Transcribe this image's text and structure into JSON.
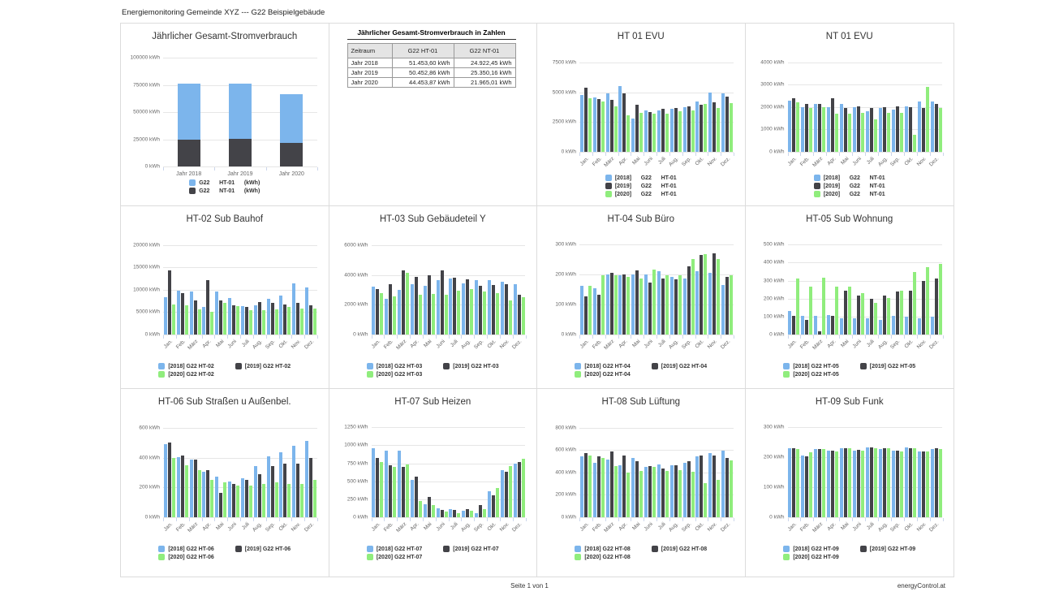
{
  "header": {
    "title": "Energiemonitoring Gemeinde XYZ --- G22 Beispielgebäude"
  },
  "footer": {
    "page_label": "Seite 1 von 1",
    "brand": "energyControl.at"
  },
  "colors": {
    "y2018": "#7cb5ec",
    "y2019": "#434348",
    "y2020": "#90ed7d",
    "grid_line": "#e6e6e6",
    "axis_line": "#ccd6eb",
    "axis_text": "#666666",
    "title_text": "#333333"
  },
  "months": [
    "Jan.",
    "Feb.",
    "März",
    "Apr.",
    "Mai",
    "Juni",
    "Juli",
    "Aug.",
    "Sep.",
    "Okt.",
    "Nov.",
    "Dez."
  ],
  "table": {
    "title": "Jährlicher Gesamt-Stromverbrauch in Zahlen",
    "columns": [
      "Zeitraum",
      "G22 HT-01",
      "G22 NT-01"
    ],
    "rows": [
      [
        "Jahr 2018",
        "51.453,60 kWh",
        "24.922,45 kWh"
      ],
      [
        "Jahr 2019",
        "50.452,86 kWh",
        "25.350,16 kWh"
      ],
      [
        "Jahr 2020",
        "44.453,87 kWh",
        "21.965,01 kWh"
      ]
    ]
  },
  "chart_data": [
    {
      "id": "overview",
      "type": "bar",
      "stacked": true,
      "title": "Jährlicher Gesamt-Stromverbrauch",
      "categories": [
        "Jahr 2018",
        "Jahr 2019",
        "Jahr 2020"
      ],
      "ylabel_unit": "kWh",
      "yticks": [
        0,
        25000,
        50000,
        75000,
        100000
      ],
      "ymax": 106000,
      "series": [
        {
          "name": "G22 NT-01 (kWh)",
          "color": "#434348",
          "values": [
            24922.45,
            25350.16,
            21965.01
          ]
        },
        {
          "name": "G22 HT-01 (kWh)",
          "color": "#7cb5ec",
          "values": [
            51453.6,
            50452.86,
            44453.87
          ]
        }
      ],
      "legend_layout": "column",
      "legend": [
        {
          "color": "#7cb5ec",
          "label": "G22      HT-01      (kWh)"
        },
        {
          "color": "#434348",
          "label": "G22      NT-01      (kWh)"
        }
      ]
    },
    {
      "id": "ht01",
      "type": "bar",
      "stacked": false,
      "title": "HT 01 EVU",
      "ylabel_unit": "kWh",
      "yticks": [
        0,
        2500,
        5000,
        7500
      ],
      "ymax": 8450,
      "series": [
        {
          "name": "[2018] G22 HT-01",
          "color": "#7cb5ec",
          "values": [
            4750,
            4550,
            4900,
            5500,
            2800,
            3500,
            3500,
            3600,
            3750,
            4250,
            4950,
            4900
          ]
        },
        {
          "name": "[2019] G22 HT-01",
          "color": "#434348",
          "values": [
            5400,
            4450,
            4350,
            4900,
            3950,
            3350,
            3600,
            3650,
            3800,
            3950,
            4150,
            4650
          ]
        },
        {
          "name": "[2020] G22 HT-01",
          "color": "#90ed7d",
          "values": [
            4500,
            4200,
            3800,
            3050,
            3250,
            3200,
            3200,
            3400,
            3500,
            4000,
            3650,
            4100
          ]
        }
      ],
      "legend_layout": "column",
      "legend": [
        {
          "color": "#7cb5ec",
          "label": "[2018]      G22      HT-01"
        },
        {
          "color": "#434348",
          "label": "[2019]      G22      HT-01"
        },
        {
          "color": "#90ed7d",
          "label": "[2020]      G22      HT-01"
        }
      ]
    },
    {
      "id": "nt01",
      "type": "bar",
      "stacked": false,
      "title": "NT 01 EVU",
      "ylabel_unit": "kWh",
      "yticks": [
        0,
        1000,
        2000,
        3000,
        4000
      ],
      "ymax": 4500,
      "series": [
        {
          "name": "[2018] G22 NT-01",
          "color": "#7cb5ec",
          "values": [
            2300,
            2000,
            2150,
            2000,
            2150,
            2000,
            1800,
            1950,
            1900,
            2050,
            2250,
            2250
          ]
        },
        {
          "name": "[2019] G22 NT-01",
          "color": "#434348",
          "values": [
            2400,
            2150,
            2150,
            2400,
            1950,
            2050,
            1950,
            2000,
            2050,
            2000,
            1950,
            2150
          ]
        },
        {
          "name": "[2020] G22 NT-01",
          "color": "#90ed7d",
          "values": [
            2200,
            1950,
            2000,
            1700,
            1700,
            1750,
            1450,
            1750,
            1750,
            750,
            2900,
            1950
          ]
        }
      ],
      "legend_layout": "column",
      "legend": [
        {
          "color": "#7cb5ec",
          "label": "[2018]      G22      NT-01"
        },
        {
          "color": "#434348",
          "label": "[2019]      G22      NT-01"
        },
        {
          "color": "#90ed7d",
          "label": "[2020]      G22      NT-01"
        }
      ]
    },
    {
      "id": "ht02",
      "type": "bar",
      "stacked": false,
      "title": "HT-02 Sub Bauhof",
      "ylabel_unit": "kWh",
      "yticks": [
        0,
        5000,
        10000,
        15000,
        20000
      ],
      "ymax": 22500,
      "series": [
        {
          "name": "[2018] G22 HT-02",
          "color": "#7cb5ec",
          "values": [
            8300,
            9800,
            9600,
            6100,
            9600,
            8100,
            6400,
            6600,
            8000,
            8800,
            11500,
            10500
          ]
        },
        {
          "name": "[2019] G22 HT-02",
          "color": "#434348",
          "values": [
            14300,
            9300,
            7600,
            12100,
            7600,
            6500,
            6200,
            7200,
            7000,
            6800,
            7100,
            6600
          ]
        },
        {
          "name": "[2020] G22 HT-02",
          "color": "#90ed7d",
          "values": [
            6700,
            6600,
            5700,
            5000,
            7100,
            6400,
            5400,
            5400,
            5600,
            6200,
            5900,
            5900
          ]
        }
      ],
      "legend_layout": "two-col",
      "legend": [
        {
          "color": "#7cb5ec",
          "label": "[2018] G22 HT-02"
        },
        {
          "color": "#434348",
          "label": "[2019] G22 HT-02"
        },
        {
          "color": "#90ed7d",
          "label": "[2020] G22 HT-02"
        }
      ]
    },
    {
      "id": "ht03",
      "type": "bar",
      "stacked": false,
      "title": "HT-03 Sub Gebäudeteil Y",
      "ylabel_unit": "kWh",
      "yticks": [
        0,
        2000,
        4000,
        6000
      ],
      "ymax": 6750,
      "series": [
        {
          "name": "[2018] G22 HT-03",
          "color": "#7cb5ec",
          "values": [
            3200,
            2400,
            3000,
            3350,
            3250,
            3650,
            3750,
            3450,
            3650,
            3650,
            3550,
            3350
          ]
        },
        {
          "name": "[2019] G22 HT-03",
          "color": "#434348",
          "values": [
            3050,
            3350,
            4300,
            3880,
            3950,
            4300,
            3820,
            3720,
            3280,
            3300,
            3380,
            2650
          ]
        },
        {
          "name": "[2020] G22 HT-03",
          "color": "#90ed7d",
          "values": [
            2750,
            2550,
            4150,
            2680,
            2700,
            2650,
            2950,
            3050,
            2880,
            2780,
            2280,
            2500
          ]
        }
      ],
      "legend_layout": "two-col",
      "legend": [
        {
          "color": "#7cb5ec",
          "label": "[2018] G22 HT-03"
        },
        {
          "color": "#434348",
          "label": "[2019] G22 HT-03"
        },
        {
          "color": "#90ed7d",
          "label": "[2020] G22 HT-03"
        }
      ]
    },
    {
      "id": "ht04",
      "type": "bar",
      "stacked": false,
      "title": "HT-04 Sub Büro",
      "ylabel_unit": "kWh",
      "yticks": [
        0,
        100,
        200,
        300
      ],
      "ymax": 335,
      "series": [
        {
          "name": "[2018] G22 HT-04",
          "color": "#7cb5ec",
          "values": [
            163,
            153,
            199,
            196,
            200,
            200,
            211,
            193,
            187,
            212,
            206,
            166
          ]
        },
        {
          "name": "[2019] G22 HT-04",
          "color": "#434348",
          "values": [
            127,
            133,
            205,
            200,
            213,
            172,
            187,
            185,
            228,
            265,
            269,
            192
          ]
        },
        {
          "name": "[2020] G22 HT-04",
          "color": "#90ed7d",
          "values": [
            161,
            196,
            196,
            191,
            186,
            215,
            197,
            197,
            252,
            267,
            250,
            196
          ]
        }
      ],
      "legend_layout": "two-col",
      "legend": [
        {
          "color": "#7cb5ec",
          "label": "[2018] G22 HT-04"
        },
        {
          "color": "#434348",
          "label": "[2019] G22 HT-04"
        },
        {
          "color": "#90ed7d",
          "label": "[2020] G22 HT-04"
        }
      ]
    },
    {
      "id": "ht05",
      "type": "bar",
      "stacked": false,
      "title": "HT-05 Sub Wohnung",
      "ylabel_unit": "kWh",
      "yticks": [
        0,
        100,
        200,
        300,
        400,
        500
      ],
      "ymax": 560,
      "series": [
        {
          "name": "[2018] G22 HT-05",
          "color": "#7cb5ec",
          "values": [
            132,
            106,
            104,
            108,
            92,
            91,
            91,
            83,
            102,
            100,
            90,
            98
          ]
        },
        {
          "name": "[2019] G22 HT-05",
          "color": "#434348",
          "values": [
            104,
            80,
            18,
            102,
            245,
            218,
            199,
            217,
            241,
            246,
            297,
            312
          ]
        },
        {
          "name": "[2020] G22 HT-05",
          "color": "#90ed7d",
          "values": [
            312,
            268,
            318,
            268,
            266,
            231,
            178,
            202,
            243,
            350,
            375,
            391
          ]
        }
      ],
      "legend_layout": "two-col",
      "legend": [
        {
          "color": "#7cb5ec",
          "label": "[2018] G22 HT-05"
        },
        {
          "color": "#434348",
          "label": "[2019] G22 HT-05"
        },
        {
          "color": "#90ed7d",
          "label": "[2020] G22 HT-05"
        }
      ]
    },
    {
      "id": "ht06",
      "type": "bar",
      "stacked": false,
      "title": "HT-06 Sub Straßen u Außenbel.",
      "ylabel_unit": "kWh",
      "yticks": [
        0,
        200,
        400,
        600
      ],
      "ymax": 675,
      "series": [
        {
          "name": "[2018] G22 HT-06",
          "color": "#7cb5ec",
          "values": [
            490,
            405,
            388,
            306,
            270,
            240,
            260,
            345,
            410,
            433,
            477,
            512
          ]
        },
        {
          "name": "[2019] G22 HT-06",
          "color": "#434348",
          "values": [
            500,
            413,
            389,
            316,
            166,
            222,
            248,
            291,
            341,
            362,
            358,
            400
          ]
        },
        {
          "name": "[2020] G22 HT-06",
          "color": "#90ed7d",
          "values": [
            397,
            350,
            316,
            248,
            232,
            210,
            212,
            224,
            233,
            222,
            223,
            250
          ]
        }
      ],
      "legend_layout": "two-col",
      "legend": [
        {
          "color": "#7cb5ec",
          "label": "[2018] G22 HT-06"
        },
        {
          "color": "#434348",
          "label": "[2019] G22 HT-06"
        },
        {
          "color": "#90ed7d",
          "label": "[2020] G22 HT-06"
        }
      ]
    },
    {
      "id": "ht07",
      "type": "bar",
      "stacked": false,
      "title": "HT-07 Sub Heizen",
      "ylabel_unit": "kWh",
      "yticks": [
        0,
        250,
        500,
        750,
        1000,
        1250
      ],
      "ymax": 1400,
      "series": [
        {
          "name": "[2018] G22 HT-07",
          "color": "#7cb5ec",
          "values": [
            960,
            930,
            930,
            515,
            180,
            120,
            115,
            85,
            55,
            365,
            650,
            750
          ]
        },
        {
          "name": "[2019] G22 HT-07",
          "color": "#434348",
          "values": [
            820,
            720,
            700,
            565,
            280,
            105,
            105,
            115,
            165,
            305,
            630,
            765
          ]
        },
        {
          "name": "[2020] G22 HT-07",
          "color": "#90ed7d",
          "values": [
            770,
            705,
            735,
            230,
            165,
            75,
            55,
            90,
            110,
            410,
            710,
            810
          ]
        }
      ],
      "legend_layout": "two-col",
      "legend": [
        {
          "color": "#7cb5ec",
          "label": "[2018] G22 HT-07"
        },
        {
          "color": "#434348",
          "label": "[2019] G22 HT-07"
        },
        {
          "color": "#90ed7d",
          "label": "[2020] G22 HT-07"
        }
      ]
    },
    {
      "id": "ht08",
      "type": "bar",
      "stacked": false,
      "title": "HT-08 Sub Lüftung",
      "ylabel_unit": "kWh",
      "yticks": [
        0,
        200,
        400,
        600,
        800
      ],
      "ymax": 900,
      "series": [
        {
          "name": "[2018] G22 HT-08",
          "color": "#7cb5ec",
          "values": [
            548,
            483,
            515,
            467,
            527,
            448,
            472,
            465,
            485,
            545,
            572,
            598
          ]
        },
        {
          "name": "[2019] G22 HT-08",
          "color": "#434348",
          "values": [
            572,
            543,
            590,
            555,
            500,
            455,
            435,
            462,
            500,
            553,
            552,
            533
          ]
        },
        {
          "name": "[2020] G22 HT-08",
          "color": "#90ed7d",
          "values": [
            552,
            530,
            455,
            398,
            415,
            450,
            415,
            420,
            407,
            302,
            333,
            505
          ]
        }
      ],
      "legend_layout": "two-col",
      "legend": [
        {
          "color": "#7cb5ec",
          "label": "[2018] G22 HT-08"
        },
        {
          "color": "#434348",
          "label": "[2019] G22 HT-08"
        },
        {
          "color": "#90ed7d",
          "label": "[2020] G22 HT-08"
        }
      ]
    },
    {
      "id": "ht09",
      "type": "bar",
      "stacked": false,
      "title": "HT-09 Sub Funk",
      "ylabel_unit": "kWh",
      "yticks": [
        0,
        100,
        200,
        300
      ],
      "ymax": 335,
      "series": [
        {
          "name": "[2018] G22 HT-09",
          "color": "#7cb5ec",
          "values": [
            230,
            205,
            226,
            222,
            229,
            222,
            232,
            228,
            221,
            232,
            220,
            228
          ]
        },
        {
          "name": "[2019] G22 HT-09",
          "color": "#434348",
          "values": [
            230,
            204,
            228,
            221,
            230,
            223,
            232,
            230,
            221,
            230,
            220,
            229
          ]
        },
        {
          "name": "[2020] G22 HT-09",
          "color": "#90ed7d",
          "values": [
            228,
            215,
            227,
            220,
            229,
            222,
            230,
            230,
            220,
            230,
            220,
            228
          ]
        }
      ],
      "legend_layout": "two-col",
      "legend": [
        {
          "color": "#7cb5ec",
          "label": "[2018] G22 HT-09"
        },
        {
          "color": "#434348",
          "label": "[2019] G22 HT-09"
        },
        {
          "color": "#90ed7d",
          "label": "[2020] G22 HT-09"
        }
      ]
    }
  ]
}
